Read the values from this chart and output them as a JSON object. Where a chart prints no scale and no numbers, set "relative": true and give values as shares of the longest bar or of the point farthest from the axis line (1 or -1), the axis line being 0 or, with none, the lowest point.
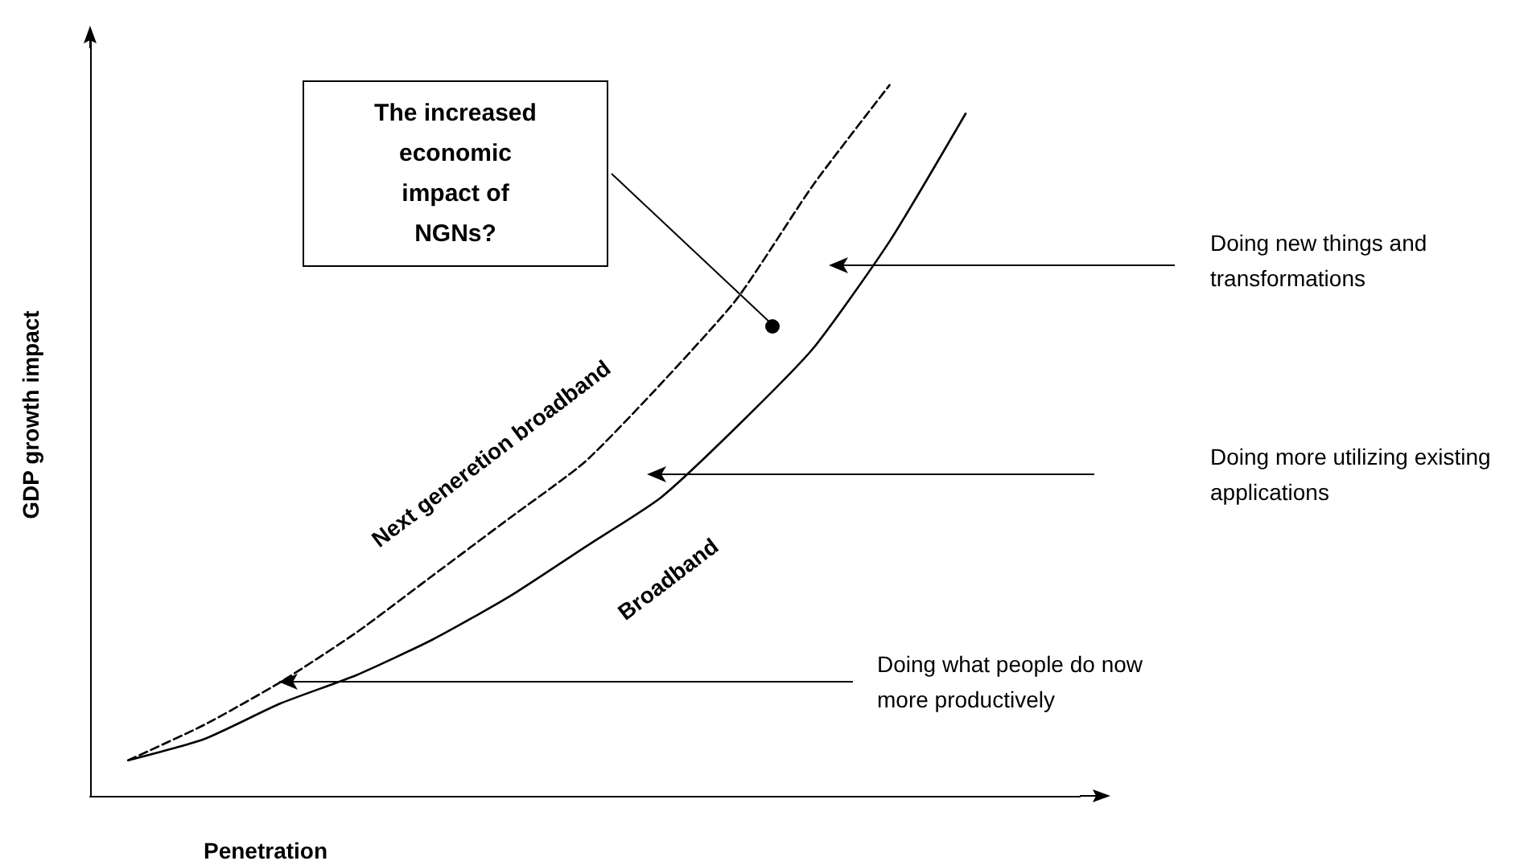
{
  "chart_data": {
    "type": "line",
    "relative": true,
    "xlabel": "Penetration",
    "ylabel": "GDP growth impact",
    "categories": [
      null,
      null,
      null,
      null,
      null,
      null,
      null,
      null,
      null,
      null,
      null,
      null,
      null
    ],
    "series": [
      {
        "name": "Next generetion broadband",
        "color": "#000000",
        "line_style": "dashed",
        "values": [
          0.05,
          0.1,
          0.16,
          0.23,
          0.31,
          0.39,
          0.47,
          0.58,
          0.7,
          0.86,
          1.0,
          null,
          null
        ]
      },
      {
        "name": "Broadband",
        "color": "#000000",
        "line_style": "solid",
        "values": [
          0.05,
          0.08,
          0.13,
          0.17,
          0.22,
          0.28,
          0.35,
          0.42,
          0.52,
          0.63,
          0.78,
          0.96,
          null
        ]
      }
    ],
    "marker": "none",
    "annotations": [
      "The increased economic impact of NGNs?",
      "Doing new things and transformations",
      "Doing more utilizing existing applications",
      "Doing what people do now more productively"
    ]
  }
}
